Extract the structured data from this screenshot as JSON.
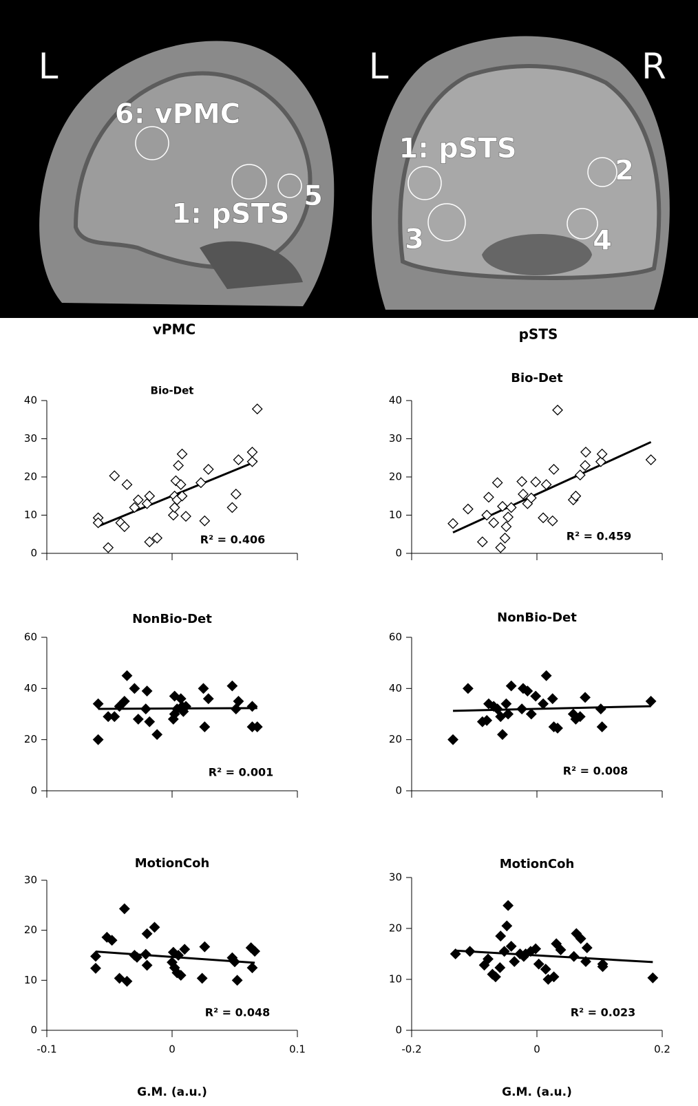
{
  "images": [
    {
      "labels": [
        "L",
        "6: vPMC",
        "1: pSTS",
        "5"
      ]
    },
    {
      "labels": [
        "L",
        "R",
        "1: pSTS",
        "2",
        "3",
        "4"
      ]
    }
  ],
  "column_titles": [
    "vPMC",
    "pSTS"
  ],
  "chart_data": [
    {
      "type": "scatter",
      "title": "Bio-Det",
      "annotation": "R² = 0.406",
      "trendline": true,
      "marker": "diamond-open",
      "color": "#000000",
      "x": [
        -0.059,
        -0.059,
        -0.051,
        -0.046,
        -0.041,
        -0.038,
        -0.036,
        -0.03,
        -0.027,
        -0.02,
        -0.018,
        -0.018,
        -0.012,
        0.001,
        0.002,
        0.002,
        0.003,
        0.004,
        0.005,
        0.007,
        0.008,
        0.008,
        0.011,
        0.023,
        0.026,
        0.029,
        0.048,
        0.051,
        0.053,
        0.064,
        0.064,
        0.068
      ],
      "series": [
        {
          "values": [
            9.3,
            8,
            1.5,
            20.3,
            8,
            7,
            18,
            12,
            14,
            13,
            15,
            3,
            4,
            10,
            12,
            15,
            19,
            14,
            23,
            18,
            15,
            26,
            9.7,
            18.5,
            8.5,
            22,
            12,
            15.5,
            24.5,
            26.5,
            24,
            37.8
          ]
        }
      ],
      "xlim": [
        -0.1,
        0.1
      ],
      "xticks": [
        -0.1,
        0,
        0.1
      ],
      "show_xtick_labels": false,
      "ylim": [
        0,
        40
      ],
      "yticks": [
        0,
        10,
        20,
        30,
        40
      ]
    },
    {
      "type": "scatter",
      "title": "Bio-Det",
      "annotation": "R² = 0.459",
      "trendline": true,
      "marker": "diamond-open",
      "color": "#000000",
      "x": [
        -0.134,
        -0.11,
        -0.087,
        -0.08,
        -0.077,
        -0.069,
        -0.063,
        -0.058,
        -0.055,
        -0.049,
        -0.051,
        -0.046,
        -0.041,
        -0.024,
        -0.022,
        -0.015,
        -0.009,
        -0.002,
        0.01,
        0.015,
        0.025,
        0.027,
        0.033,
        0.058,
        0.062,
        0.069,
        0.077,
        0.078,
        0.102,
        0.104,
        0.182
      ],
      "series": [
        {
          "values": [
            7.8,
            11.6,
            3,
            10,
            14.7,
            8,
            18.5,
            1.5,
            12.3,
            7,
            4,
            9.5,
            12,
            18.8,
            15.5,
            13,
            14.5,
            18.7,
            9.3,
            18,
            8.5,
            22,
            37.5,
            14,
            15,
            20.5,
            23,
            26.5,
            24,
            26,
            24.5
          ]
        }
      ],
      "xlim": [
        -0.2,
        0.2
      ],
      "xticks": [
        -0.2,
        0,
        0.2
      ],
      "show_xtick_labels": false,
      "ylim": [
        0,
        40
      ],
      "yticks": [
        0,
        10,
        20,
        30,
        40
      ]
    },
    {
      "type": "scatter",
      "title": "NonBio-Det",
      "annotation": "R² = 0.001",
      "trendline": true,
      "marker": "diamond-filled",
      "color": "#000000",
      "x": [
        -0.059,
        -0.059,
        -0.051,
        -0.046,
        -0.042,
        -0.038,
        -0.036,
        -0.03,
        -0.027,
        -0.021,
        -0.02,
        -0.018,
        -0.012,
        0.001,
        0.002,
        0.002,
        0.004,
        0.007,
        0.008,
        0.009,
        0.011,
        0.025,
        0.026,
        0.029,
        0.048,
        0.051,
        0.053,
        0.064,
        0.064,
        0.068
      ],
      "series": [
        {
          "values": [
            20,
            34,
            29,
            29,
            33,
            35,
            45,
            40,
            28,
            32,
            39,
            27,
            22,
            28,
            30,
            37,
            32,
            36,
            33,
            31,
            33,
            40,
            25,
            36,
            41,
            32,
            35,
            33,
            25,
            25
          ]
        }
      ],
      "xlim": [
        -0.1,
        0.1
      ],
      "xticks": [
        -0.1,
        0,
        0.1
      ],
      "show_xtick_labels": false,
      "ylim": [
        0,
        60
      ],
      "yticks": [
        0,
        20,
        40,
        60
      ]
    },
    {
      "type": "scatter",
      "title": "NonBio-Det",
      "annotation": "R² = 0.008",
      "trendline": true,
      "marker": "diamond-filled",
      "color": "#000000",
      "x": [
        -0.134,
        -0.11,
        -0.087,
        -0.08,
        -0.077,
        -0.069,
        -0.063,
        -0.058,
        -0.055,
        -0.049,
        -0.046,
        -0.041,
        -0.024,
        -0.022,
        -0.015,
        -0.009,
        -0.002,
        0.01,
        0.015,
        0.025,
        0.027,
        0.033,
        0.058,
        0.062,
        0.069,
        0.077,
        0.102,
        0.104,
        0.182
      ],
      "series": [
        {
          "values": [
            20,
            40,
            27,
            27.5,
            34,
            33,
            32,
            29,
            22,
            34,
            30,
            41,
            32,
            40,
            39,
            30,
            37,
            34,
            45,
            36,
            25,
            24.5,
            30,
            28,
            29,
            36.5,
            32,
            25,
            35
          ]
        }
      ],
      "xlim": [
        -0.2,
        0.2
      ],
      "xticks": [
        -0.2,
        0,
        0.2
      ],
      "show_xtick_labels": false,
      "ylim": [
        0,
        60
      ],
      "yticks": [
        0,
        20,
        40,
        60
      ]
    },
    {
      "type": "scatter",
      "title": "MotionCoh",
      "annotation": "R² = 0.048",
      "trendline": true,
      "marker": "diamond-filled",
      "color": "#000000",
      "xlabel": "G.M. (a.u.)",
      "x": [
        -0.061,
        -0.061,
        -0.052,
        -0.048,
        -0.042,
        -0.038,
        -0.036,
        -0.03,
        -0.028,
        -0.021,
        -0.02,
        -0.02,
        -0.014,
        0.0,
        0.001,
        0.002,
        0.004,
        0.005,
        0.007,
        0.01,
        0.024,
        0.026,
        0.048,
        0.05,
        0.052,
        0.063,
        0.064,
        0.066
      ],
      "series": [
        {
          "values": [
            14.8,
            12.4,
            18.6,
            18,
            10.4,
            24.3,
            9.8,
            15,
            14.6,
            15.2,
            13,
            19.3,
            20.6,
            13.6,
            15.6,
            12.5,
            11.5,
            15,
            11,
            16.2,
            10.4,
            16.7,
            14.5,
            13.7,
            10,
            16.5,
            12.5,
            15.8
          ]
        }
      ],
      "xlim": [
        -0.1,
        0.1
      ],
      "xticks": [
        -0.1,
        0,
        0.1
      ],
      "show_xtick_labels": true,
      "ylim": [
        0,
        30
      ],
      "yticks": [
        0,
        10,
        20,
        30
      ]
    },
    {
      "type": "scatter",
      "title": "MotionCoh",
      "annotation": "R² = 0.023",
      "trendline": true,
      "marker": "diamond-filled",
      "color": "#000000",
      "xlabel": "G.M. (a.u.)",
      "x": [
        -0.13,
        -0.107,
        -0.084,
        -0.078,
        -0.071,
        -0.066,
        -0.059,
        -0.058,
        -0.052,
        -0.048,
        -0.046,
        -0.041,
        -0.036,
        -0.027,
        -0.021,
        -0.018,
        -0.01,
        -0.002,
        0.003,
        0.014,
        0.018,
        0.027,
        0.031,
        0.038,
        0.059,
        0.063,
        0.07,
        0.08,
        0.078,
        0.105,
        0.105,
        0.185
      ],
      "series": [
        {
          "values": [
            15,
            15.5,
            12.8,
            14,
            11,
            10.5,
            12.3,
            18.5,
            15.5,
            20.5,
            24.5,
            16.5,
            13.5,
            15,
            14.5,
            15,
            15.5,
            16,
            13,
            12,
            10,
            10.5,
            17,
            15.8,
            14.5,
            19,
            18,
            16.2,
            13.5,
            12.5,
            13,
            10.3
          ]
        }
      ],
      "xlim": [
        -0.2,
        0.2
      ],
      "xticks": [
        -0.2,
        0,
        0.2
      ],
      "show_xtick_labels": true,
      "ylim": [
        0,
        30
      ],
      "yticks": [
        0,
        10,
        20,
        30
      ]
    }
  ]
}
